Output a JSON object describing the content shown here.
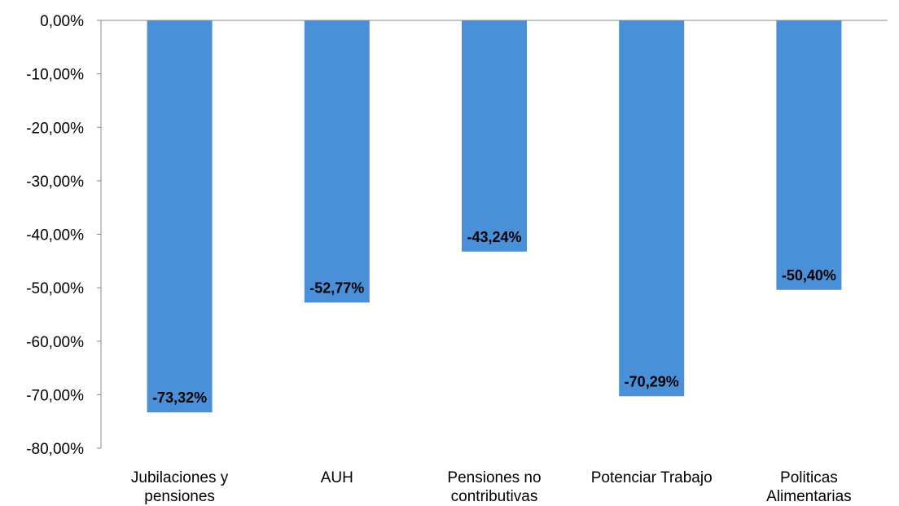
{
  "chart_data": {
    "type": "bar",
    "orientation": "vertical",
    "title": "",
    "xlabel": "",
    "ylabel": "",
    "categories": [
      [
        "Jubilaciones y",
        "pensiones"
      ],
      [
        "AUH"
      ],
      [
        "Pensiones no",
        "contributivas"
      ],
      [
        "Potenciar Trabajo"
      ],
      [
        "Politicas",
        "Alimentarias"
      ]
    ],
    "values": [
      -73.32,
      -52.77,
      -43.24,
      -70.29,
      -50.4
    ],
    "data_labels": [
      "-73,32%",
      "-52,77%",
      "-43,24%",
      "-70,29%",
      "-50,40%"
    ],
    "ylim": [
      -80,
      0
    ],
    "yticks": [
      0,
      -10,
      -20,
      -30,
      -40,
      -50,
      -60,
      -70,
      -80
    ],
    "ytick_labels": [
      "0,00%",
      "-10,00%",
      "-20,00%",
      "-30,00%",
      "-40,00%",
      "-50,00%",
      "-60,00%",
      "-70,00%",
      "-80,00%"
    ],
    "grid": false,
    "legend": "none",
    "colors": {
      "bar": "#4A90D9",
      "text": "#000000",
      "axis": "#888888"
    }
  }
}
